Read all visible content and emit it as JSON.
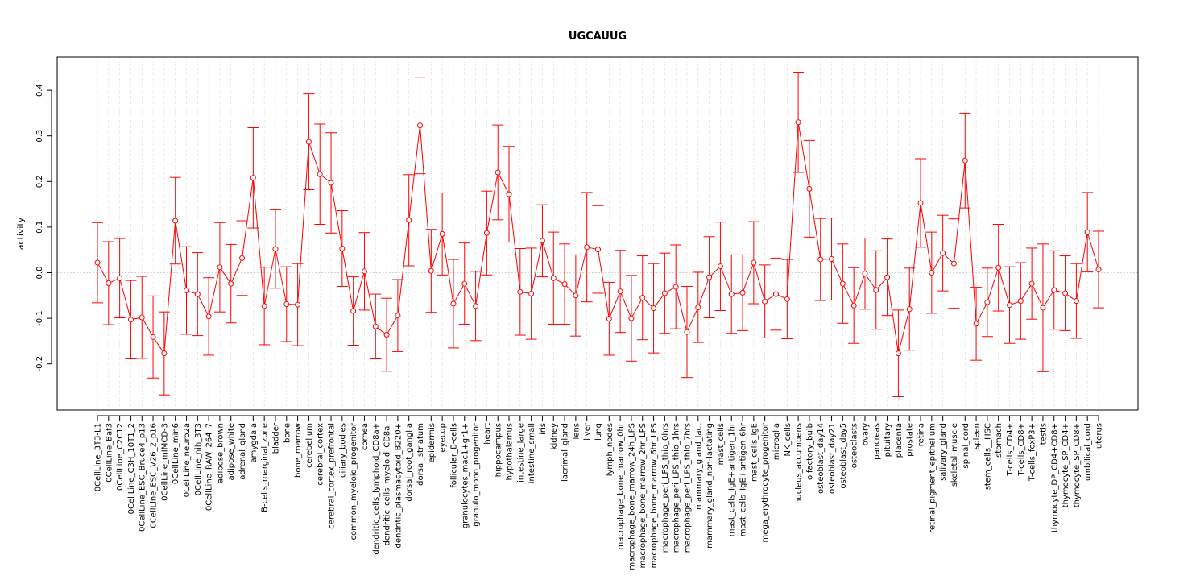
{
  "chart_data": {
    "type": "line",
    "title": "UGCAUUG",
    "xlabel": "",
    "ylabel": "activity",
    "ylim": [
      -0.3,
      0.45
    ],
    "yticks": [
      -0.2,
      -0.1,
      0.0,
      0.1,
      0.2,
      0.3,
      0.4
    ],
    "ytick_labels": [
      "-0.2",
      "-0.1",
      "0.0",
      "0.1",
      "0.2",
      "0.3",
      "0.4"
    ],
    "colors": {
      "series": "#ff0000",
      "grid": "#c8c8c8",
      "zero_line": "#c8c8c8",
      "axis": "#000000"
    },
    "categories": [
      "0CellLine_3T3-L1",
      "0CellLine_Baf3",
      "0CellLine_C2C12",
      "0CellLine_C3H_10T1_2",
      "0CellLine_ESC_Bruce4_p13",
      "0CellLine_ESC_V26_2_p16",
      "0CellLine_mIMCD-3",
      "0CellLine_min6",
      "0CellLine_neuro2a",
      "0CellLine_nih_3T3",
      "0CellLine_RAW_264_7",
      "adipose_brown",
      "adipose_white",
      "adrenal_gland",
      "amygdala",
      "B-cells_marginal_zone",
      "bladder",
      "bone",
      "bone_marrow",
      "cerebellum",
      "cerebral_cortex",
      "cerebral_cortex_prefrontal",
      "ciliary_bodies",
      "common_myeloid_progenitor",
      "cornea",
      "dendritic_cells_lymphoid_CD8a+",
      "dendritic_cells_myeloid_CD8a-",
      "dendritic_plasmacytoid_B220+",
      "dorsal_root_ganglia",
      "dorsal_striatum",
      "epidermis",
      "eyecup",
      "follicular_B-cells",
      "granulocytes_mac1+gr1+",
      "granulo_mono_progenitor",
      "heart",
      "hippocampus",
      "hypothalamus",
      "intestine_large",
      "intestine_small",
      "iris",
      "kidney",
      "lacrimal_gland",
      "lens",
      "liver",
      "lung",
      "lymph_nodes",
      "macrophage_bone_marrow_0hr",
      "macrophage_bone_marrow_24h_LPS",
      "macrophage_bone_marrow_2hr_LPS",
      "macrophage_bone_marrow_6hr_LPS",
      "macrophage_peri_LPS_thio_0hrs",
      "macrophage_peri_LPS_thio_1hrs",
      "macrophage_peri_LPS_thio_7hrs",
      "mammary_gland_lact",
      "mammary_gland_non-lactating",
      "mast_cells",
      "mast_cells_IgE+antigen_1hr",
      "mast_cells_IgE+antigen_6hr",
      "mast_cells_IgE",
      "mega_erythrocyte_progenitor",
      "microglia",
      "NK_cells",
      "nucleus_accumbens",
      "olfactory_bulb",
      "osteoblast_day14",
      "osteoblast_day21",
      "osteoblast_day5",
      "osteoclasts",
      "ovary",
      "pancreas",
      "pituitary",
      "placenta",
      "prostate",
      "retina",
      "retinal_pigment_epithelium",
      "salivary_gland",
      "skeletal_muscle",
      "spinal_cord",
      "spleen",
      "stem_cells__HSC",
      "stomach",
      "T-cells_CD4+",
      "T-cells_CD8+",
      "T-cells_foxP3+",
      "testis",
      "thymocyte_DP_CD4+CD8+",
      "thymocyte_SP_CD4+",
      "thymocyte_SP_CD8+",
      "umbilical_cord",
      "uterus"
    ],
    "values": [
      0.022,
      -0.023,
      -0.012,
      -0.103,
      -0.098,
      -0.141,
      -0.177,
      0.114,
      -0.039,
      -0.047,
      -0.096,
      0.012,
      -0.024,
      0.032,
      0.208,
      -0.073,
      0.052,
      -0.069,
      -0.07,
      0.287,
      0.216,
      0.197,
      0.053,
      -0.084,
      0.003,
      -0.118,
      -0.136,
      -0.094,
      0.115,
      0.323,
      0.004,
      0.085,
      -0.068,
      -0.024,
      -0.073,
      0.087,
      0.22,
      0.172,
      -0.042,
      -0.046,
      0.07,
      -0.012,
      -0.025,
      -0.05,
      0.056,
      0.051,
      -0.101,
      -0.041,
      -0.1,
      -0.055,
      -0.078,
      -0.045,
      -0.031,
      -0.13,
      -0.076,
      -0.01,
      0.014,
      -0.047,
      -0.044,
      0.022,
      -0.063,
      -0.047,
      -0.058,
      0.33,
      0.184,
      0.029,
      0.03,
      -0.024,
      -0.072,
      -0.002,
      -0.038,
      -0.01,
      -0.177,
      -0.08,
      0.153,
      0.0,
      0.043,
      0.02,
      0.246,
      -0.112,
      -0.065,
      0.011,
      -0.071,
      -0.062,
      -0.024,
      -0.077,
      -0.038,
      -0.045,
      -0.062,
      0.089,
      0.007
    ],
    "errors": [
      0.088,
      0.091,
      0.087,
      0.086,
      0.09,
      0.09,
      0.091,
      0.095,
      0.096,
      0.091,
      0.085,
      0.098,
      0.086,
      0.082,
      0.11,
      0.085,
      0.086,
      0.082,
      0.09,
      0.105,
      0.11,
      0.11,
      0.083,
      0.075,
      0.085,
      0.071,
      0.08,
      0.079,
      0.1,
      0.106,
      0.091,
      0.09,
      0.097,
      0.089,
      0.076,
      0.092,
      0.104,
      0.105,
      0.095,
      0.1,
      0.079,
      0.101,
      0.088,
      0.089,
      0.12,
      0.096,
      0.08,
      0.09,
      0.094,
      0.092,
      0.098,
      0.088,
      0.092,
      0.1,
      0.077,
      0.089,
      0.097,
      0.086,
      0.083,
      0.09,
      0.08,
      0.079,
      0.087,
      0.11,
      0.106,
      0.09,
      0.09,
      0.087,
      0.083,
      0.078,
      0.086,
      0.084,
      0.095,
      0.09,
      0.097,
      0.089,
      0.083,
      0.098,
      0.104,
      0.08,
      0.075,
      0.095,
      0.084,
      0.084,
      0.078,
      0.14,
      0.086,
      0.082,
      0.082,
      0.087,
      0.084
    ]
  }
}
